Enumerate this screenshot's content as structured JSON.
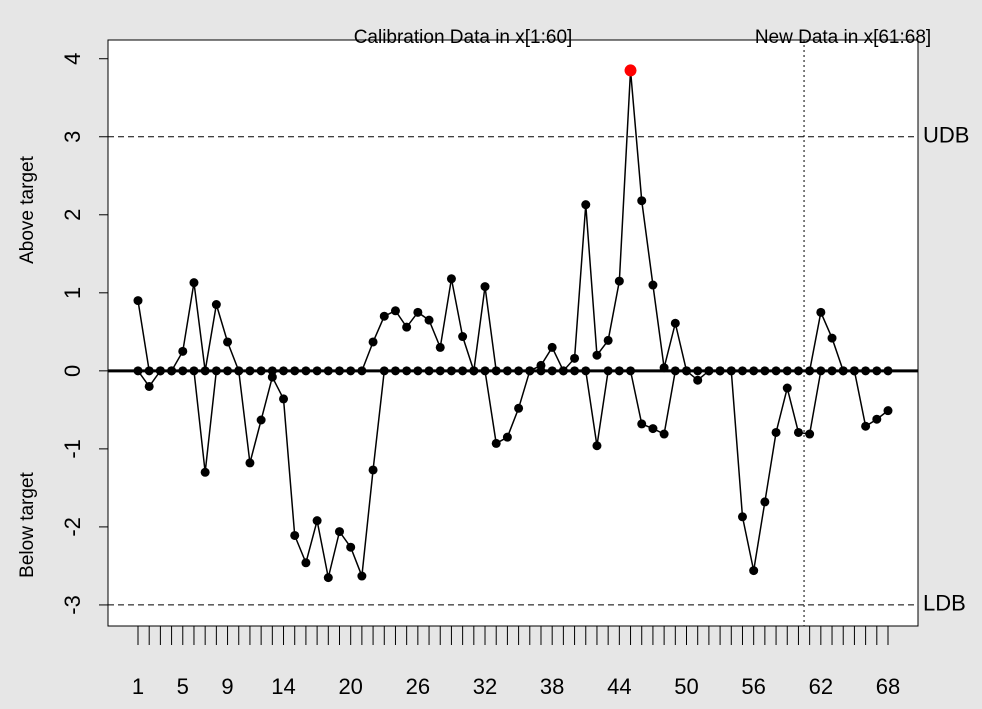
{
  "chart_data": {
    "type": "cusum",
    "title_left": "Calibration Data in x[1:60]",
    "title_right": "New Data in x[61:68]",
    "ylabel_upper": "Above target",
    "ylabel_lower": "Below target",
    "categories": [
      1,
      null,
      null,
      null,
      5,
      null,
      null,
      null,
      9,
      null,
      null,
      null,
      null,
      14,
      null,
      null,
      null,
      null,
      null,
      20,
      null,
      null,
      null,
      null,
      null,
      26,
      null,
      null,
      null,
      null,
      null,
      32,
      null,
      null,
      null,
      null,
      null,
      38,
      null,
      null,
      null,
      null,
      null,
      44,
      null,
      null,
      null,
      null,
      null,
      50,
      null,
      null,
      null,
      null,
      null,
      56,
      null,
      null,
      null,
      null,
      null,
      62,
      null,
      null,
      null,
      null,
      null,
      68
    ],
    "series": [
      {
        "color": "#000000",
        "values": [
          0.9,
          0,
          0,
          0,
          0.25,
          1.13,
          0,
          0.85,
          0.37,
          0,
          0,
          0,
          0,
          0,
          0,
          0,
          0,
          0,
          0,
          0,
          0,
          0.37,
          0.7,
          0.77,
          0.56,
          0.75,
          0.65,
          0.3,
          1.18,
          0.44,
          0,
          1.08,
          0,
          0,
          0,
          0,
          0.07,
          0.3,
          0,
          0.16,
          2.13,
          0.2,
          0.39,
          1.15,
          3.85,
          2.18,
          1.1,
          0.04,
          0.61,
          0,
          0,
          0,
          0,
          0,
          0,
          0,
          0,
          0,
          0,
          0,
          0,
          0.75,
          0.42,
          0,
          0,
          0,
          0,
          0
        ]
      },
      {
        "color": "#000000",
        "values": [
          0,
          -0.2,
          0,
          0,
          0,
          0,
          -1.3,
          0,
          0,
          0,
          -1.18,
          -0.63,
          -0.08,
          -0.36,
          -2.11,
          -2.46,
          -1.92,
          -2.65,
          -2.06,
          -2.26,
          -2.63,
          -1.27,
          0,
          0,
          0,
          0,
          0,
          0,
          0,
          0,
          0,
          0,
          -0.93,
          -0.85,
          -0.48,
          0,
          0,
          0,
          0,
          0,
          0,
          -0.96,
          0,
          0,
          0,
          -0.68,
          -0.74,
          -0.81,
          0,
          0,
          -0.12,
          0,
          0,
          0,
          -1.87,
          -2.56,
          -1.68,
          -0.79,
          -0.22,
          -0.79,
          -0.81,
          0,
          0,
          0,
          0,
          -0.71,
          -0.62,
          -0.51
        ]
      }
    ],
    "violation_color": "#ff0000",
    "center": 0,
    "limits": [
      {
        "value": 3,
        "label": "UDB"
      },
      {
        "value": -3,
        "label": "LDB"
      }
    ],
    "split": 60.5,
    "ylim": [
      -3.27,
      4.24
    ],
    "yticks": [
      -3,
      -2,
      -1,
      0,
      1,
      2,
      3,
      4
    ]
  }
}
